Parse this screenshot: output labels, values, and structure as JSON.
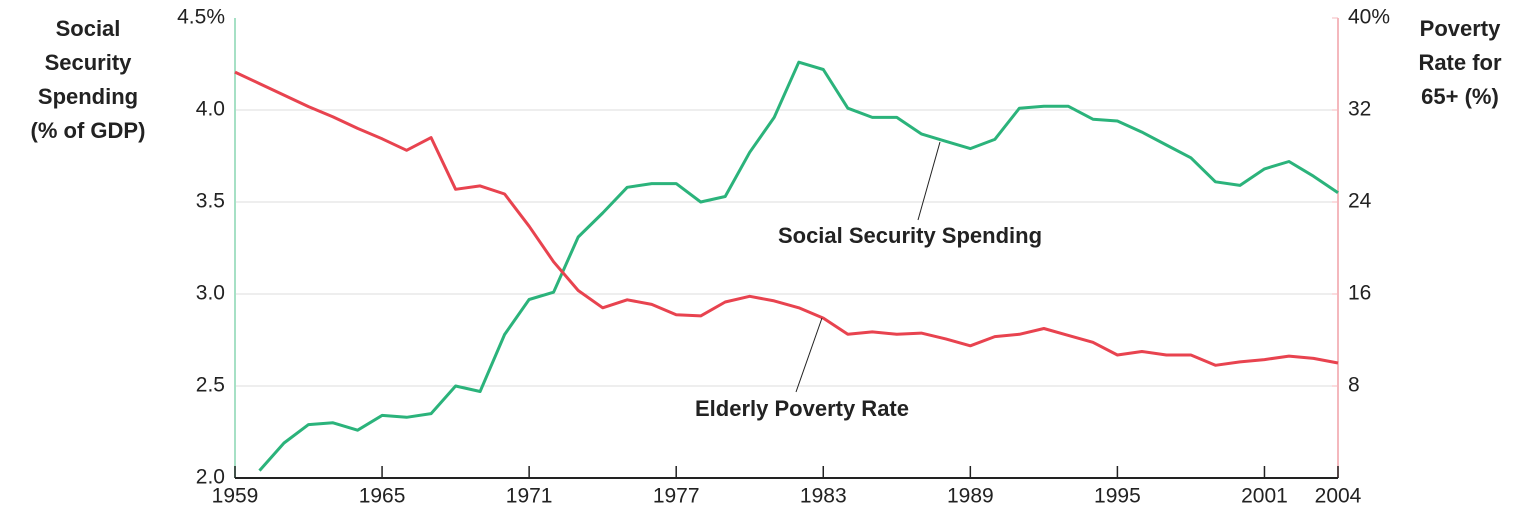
{
  "chart_data": {
    "type": "line",
    "y_label": [
      "Social",
      "Security",
      "Spending",
      "(% of GDP)"
    ],
    "y2_label": [
      "Poverty",
      "Rate for",
      "65+ (%)"
    ],
    "x": [
      1959,
      1960,
      1961,
      1962,
      1963,
      1964,
      1965,
      1966,
      1967,
      1968,
      1969,
      1970,
      1971,
      1972,
      1973,
      1974,
      1975,
      1976,
      1977,
      1978,
      1979,
      1980,
      1981,
      1982,
      1983,
      1984,
      1985,
      1986,
      1987,
      1988,
      1989,
      1990,
      1991,
      1992,
      1993,
      1994,
      1995,
      1996,
      1997,
      1998,
      1999,
      2000,
      2001,
      2002,
      2003,
      2004
    ],
    "series": [
      {
        "name": "Social Security Spending",
        "color": "#2bb37b",
        "values": [
          null,
          2.04,
          2.19,
          2.29,
          2.3,
          2.26,
          2.34,
          2.33,
          2.35,
          2.5,
          2.47,
          2.78,
          2.97,
          3.01,
          3.31,
          3.44,
          3.58,
          3.6,
          3.6,
          3.5,
          3.53,
          3.77,
          3.96,
          4.26,
          4.22,
          4.01,
          3.96,
          3.96,
          3.87,
          3.83,
          3.79,
          3.84,
          4.01,
          4.02,
          4.02,
          3.95,
          3.94,
          3.88,
          3.81,
          3.74,
          3.61,
          3.59,
          3.68,
          3.72,
          3.64,
          3.55
        ]
      },
      {
        "name": "Elderly Poverty Rate",
        "color": "#e8434f",
        "axis": "y2",
        "values": [
          35.3,
          34.3,
          33.3,
          32.3,
          31.4,
          30.4,
          29.5,
          28.5,
          29.6,
          25.1,
          25.4,
          24.7,
          21.9,
          18.8,
          16.3,
          14.8,
          15.5,
          15.1,
          14.2,
          14.1,
          15.3,
          15.8,
          15.4,
          14.8,
          13.9,
          12.5,
          12.7,
          12.5,
          12.6,
          12.1,
          11.5,
          12.3,
          12.5,
          13.0,
          12.4,
          11.8,
          10.7,
          11.0,
          10.7,
          10.7,
          9.8,
          10.1,
          10.3,
          10.6,
          10.4,
          10.0
        ]
      }
    ],
    "xlim": [
      1959,
      2004
    ],
    "xticks": [
      1959,
      1965,
      1971,
      1977,
      1983,
      1989,
      1995,
      2001,
      2004
    ],
    "ylim": [
      2,
      4.5
    ],
    "yticks": [
      {
        "value": 2,
        "label": "2.0"
      },
      2.5,
      {
        "value": 3,
        "label": "3.0"
      },
      3.5,
      {
        "value": 4,
        "label": "4.0"
      },
      {
        "value": 4.5,
        "label": "4.5%"
      }
    ],
    "y2lim": [
      0,
      40
    ],
    "y2ticks": [
      8,
      16,
      24,
      32,
      {
        "value": 40,
        "label": "40%"
      }
    ],
    "grid": true
  }
}
